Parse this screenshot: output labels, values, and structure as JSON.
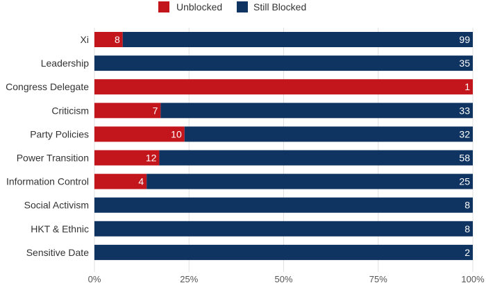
{
  "chart_data": {
    "type": "bar",
    "orientation": "horizontal",
    "stacked": "percent",
    "categories": [
      "Xi",
      "Leadership",
      "Congress Delegate",
      "Criticism",
      "Party Policies",
      "Power Transition",
      "Information Control",
      "Social Activism",
      "HKT & Ethnic",
      "Sensitive Date"
    ],
    "series": [
      {
        "name": "Unblocked",
        "color": "#c3161c",
        "values": [
          8,
          0,
          1,
          7,
          10,
          12,
          4,
          0,
          0,
          0
        ]
      },
      {
        "name": "Still Blocked",
        "color": "#0f3462",
        "values": [
          99,
          35,
          0,
          33,
          32,
          58,
          25,
          8,
          8,
          2
        ]
      }
    ],
    "xticks": [
      "0%",
      "25%",
      "50%",
      "75%",
      "100%"
    ],
    "xlim": [
      0,
      100
    ],
    "legend": {
      "placement": "top-center",
      "items": [
        "Unblocked",
        "Still Blocked"
      ]
    },
    "grid": true,
    "title": "",
    "xlabel": "",
    "ylabel": ""
  }
}
